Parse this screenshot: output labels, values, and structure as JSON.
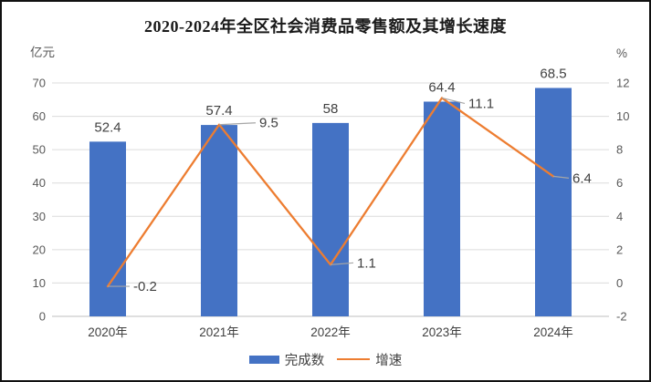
{
  "window": {
    "background": "#ffffff",
    "border_color": "#111111"
  },
  "chart_data": {
    "type": "bar+line combo",
    "title": "2020-2024年全区社会消费品零售额及其增长速度",
    "categories": [
      "2020年",
      "2021年",
      "2022年",
      "2023年",
      "2024年"
    ],
    "series": [
      {
        "name": "完成数",
        "type": "bar",
        "axis": "left",
        "values": [
          52.4,
          57.4,
          58,
          64.4,
          68.5
        ],
        "labels": [
          "52.4",
          "57.4",
          "58",
          "64.4",
          "68.5"
        ],
        "color": "#4472C4"
      },
      {
        "name": "增速",
        "type": "line",
        "axis": "right",
        "values": [
          -0.2,
          9.5,
          1.1,
          11.1,
          6.4
        ],
        "labels": [
          "-0.2",
          "9.5",
          "1.1",
          "11.1",
          "6.4"
        ],
        "color": "#ED7D31"
      }
    ],
    "left_axis": {
      "unit": "亿元",
      "min": 0,
      "max": 70,
      "step": 10,
      "ticks": [
        "0",
        "10",
        "20",
        "30",
        "40",
        "50",
        "60",
        "70"
      ]
    },
    "right_axis": {
      "unit": "%",
      "min": -2,
      "max": 12,
      "step": 2,
      "ticks": [
        "-2",
        "0",
        "2",
        "4",
        "6",
        "8",
        "10",
        "12"
      ]
    },
    "grid": true,
    "legend_position": "bottom-center",
    "colors": {
      "gridline": "#DCDCDC",
      "baseline": "#BFBFBF",
      "tick_label": "#595959",
      "data_label": "#404040",
      "leader_line": "#A6A6A6"
    }
  }
}
